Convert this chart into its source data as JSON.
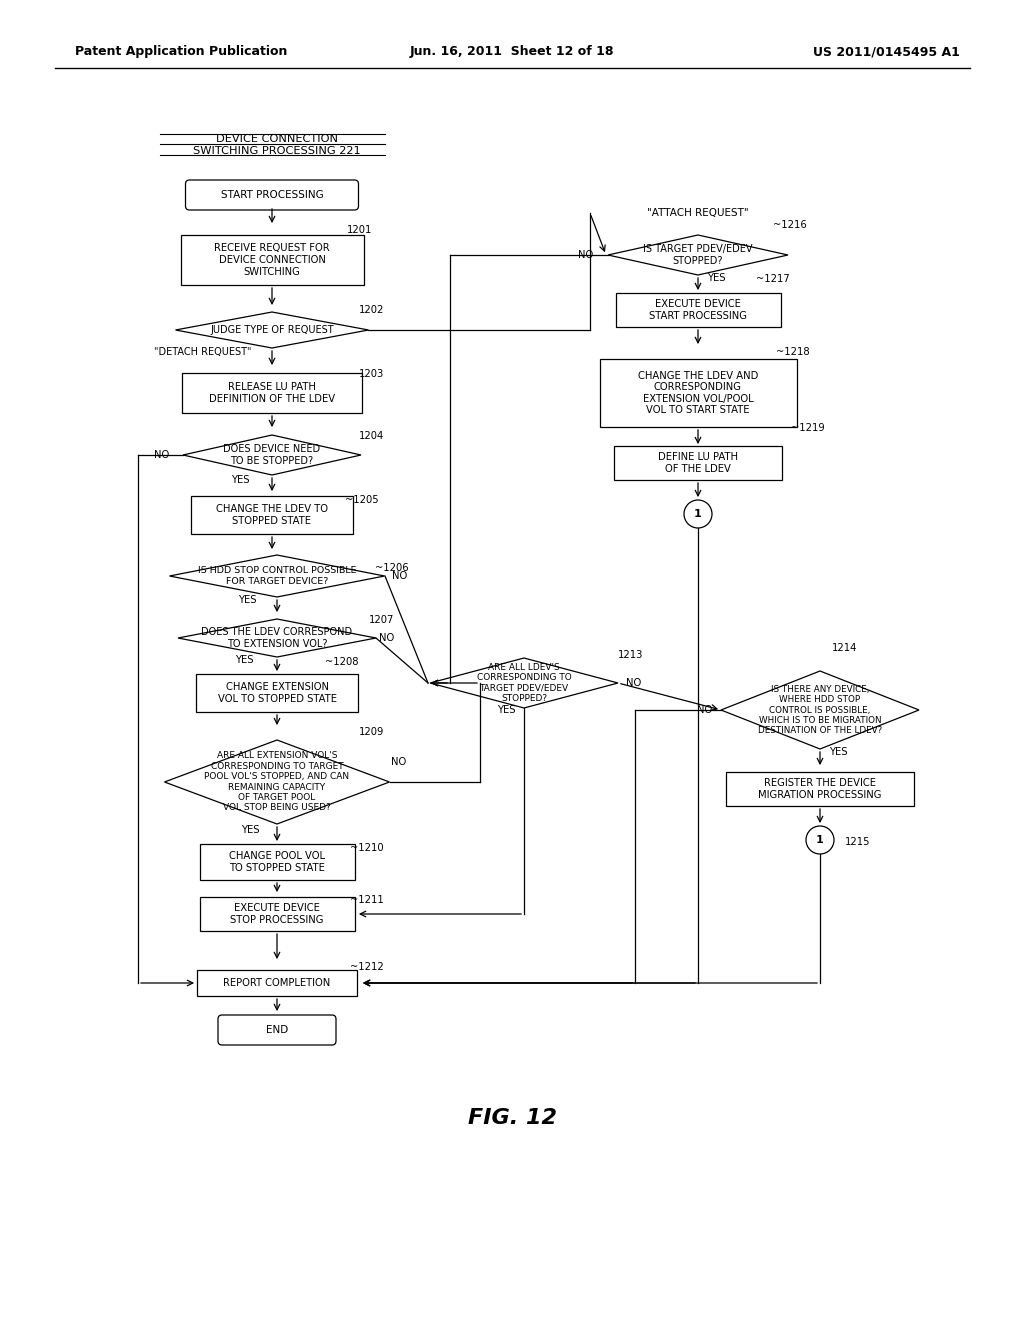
{
  "bg_color": "#ffffff",
  "header_left": "Patent Application Publication",
  "header_mid": "Jun. 16, 2011  Sheet 12 of 18",
  "header_right": "US 2011/0145495 A1",
  "fig_label": "FIG. 12"
}
